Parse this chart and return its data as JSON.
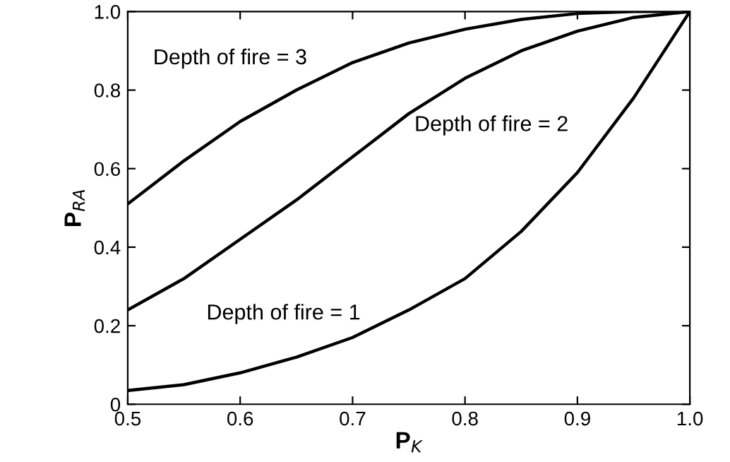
{
  "chart_data": {
    "type": "line",
    "xlabel": "P$_{K}$",
    "ylabel": "P$_{RA}$",
    "x": [
      0.5,
      0.55,
      0.6,
      0.65,
      0.7,
      0.75,
      0.8,
      0.85,
      0.9,
      0.95,
      1.0
    ],
    "series": [
      {
        "color": "#000000",
        "values": [
          0.035,
          0.05,
          0.08,
          0.12,
          0.17,
          0.24,
          0.32,
          0.44,
          0.59,
          0.78,
          1.0
        ]
      },
      {
        "color": "#000000",
        "values": [
          0.24,
          0.32,
          0.42,
          0.52,
          0.63,
          0.74,
          0.83,
          0.9,
          0.95,
          0.985,
          1.0
        ]
      },
      {
        "color": "#000000",
        "values": [
          0.51,
          0.62,
          0.72,
          0.8,
          0.87,
          0.92,
          0.955,
          0.98,
          0.995,
          1.0,
          1.0
        ]
      }
    ],
    "annotations": [
      "Depth of fire = 1",
      "Depth of fire = 2",
      "Depth of fire = 3"
    ],
    "xlim": [
      0.5,
      1.0
    ],
    "ylim": [
      0,
      1.0
    ],
    "xticks": [
      0.5,
      0.6,
      0.7,
      0.8,
      0.9,
      {
        "value": 1.0,
        "label": "1.0"
      }
    ],
    "yticks": [
      0,
      0.2,
      0.4,
      0.6,
      0.8,
      {
        "value": 1.0,
        "label": "1.0"
      }
    ],
    "grid": false,
    "legend": false,
    "marker": "none",
    "line_style": "solid"
  }
}
